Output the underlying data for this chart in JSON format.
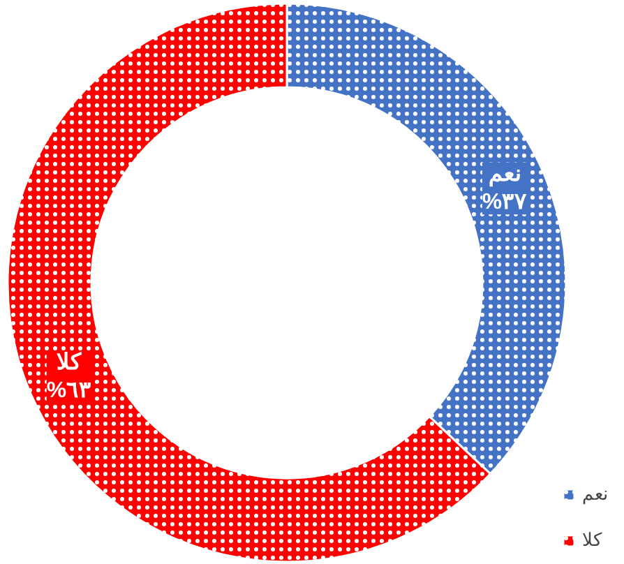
{
  "chart_data": {
    "type": "donut",
    "categories": [
      "نعم",
      "كلا"
    ],
    "values": [
      37,
      63
    ],
    "colors": [
      "#4472c4",
      "#ff0000"
    ],
    "value_labels": [
      "%٣٧",
      "%٦٣"
    ],
    "legend": "bottom right"
  }
}
